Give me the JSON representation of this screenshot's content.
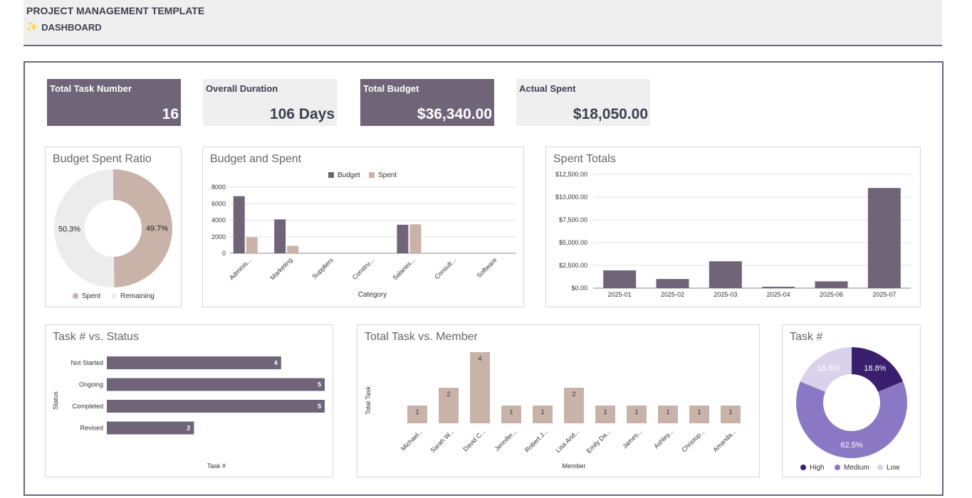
{
  "header": {
    "title": "PROJECT MANAGEMENT TEMPLATE",
    "subtitle": "DASHBOARD",
    "subtitle_icon": "sparkle-icon"
  },
  "colors": {
    "dark": "#6f6478",
    "beige": "#c9b3a8",
    "light_gray": "#efefef",
    "pie_high": "#3a1f6e",
    "pie_medium": "#8a78c4",
    "pie_low": "#d9d2ea"
  },
  "kpis": [
    {
      "label": "Total Task Number",
      "value": "16"
    },
    {
      "label": "Overall Duration",
      "value": "106 Days"
    },
    {
      "label": "Total Budget",
      "value": "$36,340.00"
    },
    {
      "label": "Actual Spent",
      "value": "$18,050.00"
    }
  ],
  "chart_data": [
    {
      "id": "budget_ratio",
      "type": "pie",
      "title": "Budget Spent Ratio",
      "labels": [
        "Spent",
        "Remaining"
      ],
      "values": [
        49.7,
        50.3
      ],
      "data_labels": [
        "49.7%",
        "50.3%"
      ],
      "legend": "bottom"
    },
    {
      "id": "budget_spent",
      "type": "bar",
      "title": "Budget and Spent",
      "categories": [
        "Adminis...",
        "Marketing",
        "Suppliers",
        "Constru...",
        "Salaries...",
        "Consult...",
        "Software"
      ],
      "series": [
        {
          "name": "Budget",
          "values": [
            6900,
            4100,
            0,
            0,
            3450,
            0,
            0
          ]
        },
        {
          "name": "Spent",
          "values": [
            1950,
            900,
            0,
            0,
            3500,
            0,
            0
          ]
        }
      ],
      "xlabel": "Category",
      "ylabel": "",
      "ylim": [
        0,
        8000
      ],
      "yticks": [
        "0",
        "2000",
        "4000",
        "6000",
        "8000"
      ],
      "legend": "top"
    },
    {
      "id": "spent_totals",
      "type": "bar",
      "title": "Spent Totals",
      "categories": [
        "2025-01",
        "2025-02",
        "2025-03",
        "2025-04",
        "2025-06",
        "2025-07"
      ],
      "values": [
        1950,
        1000,
        2950,
        150,
        750,
        11000
      ],
      "ylim": [
        0,
        12500
      ],
      "yticks": [
        "$0.00",
        "$2,500.00",
        "$5,000.00",
        "$7,500.00",
        "$10,000.00",
        "$12,500.00"
      ]
    },
    {
      "id": "task_status",
      "type": "bar",
      "title": "Task # vs. Status",
      "orientation": "horizontal",
      "categories": [
        "Not Started",
        "Ongoing",
        "Completed",
        "Revised"
      ],
      "values": [
        4,
        5,
        5,
        2
      ],
      "xlabel": "Task #",
      "ylabel": "Status"
    },
    {
      "id": "task_member",
      "type": "bar",
      "title": "Total Task vs. Member",
      "categories": [
        "Michael...",
        "Sarah W...",
        "David C...",
        "Jennifer...",
        "Robert J...",
        "Lisa And...",
        "Emily Da...",
        "James...",
        "Ashley...",
        "Christop...",
        "Amanda..."
      ],
      "values": [
        1,
        2,
        4,
        1,
        1,
        2,
        1,
        1,
        1,
        1,
        1
      ],
      "xlabel": "Member",
      "ylabel": "Total Task"
    },
    {
      "id": "task_priority",
      "type": "pie",
      "title": "Task #",
      "labels": [
        "High",
        "Medium",
        "Low"
      ],
      "values": [
        18.8,
        62.5,
        18.8
      ],
      "data_labels": [
        "18.8%",
        "62.5%",
        "18.8%"
      ],
      "legend": "bottom"
    }
  ]
}
